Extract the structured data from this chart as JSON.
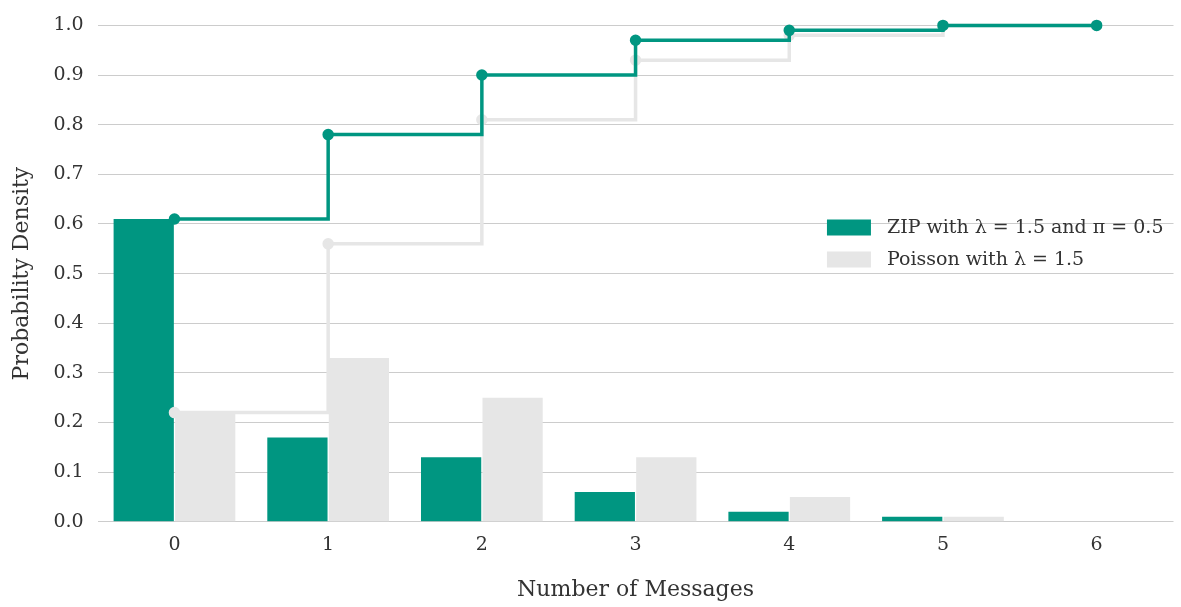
{
  "chart_data": {
    "type": "bar",
    "xlabel": "Number of Messages",
    "ylabel": "Probability Density",
    "categories": [
      "0",
      "1",
      "2",
      "3",
      "4",
      "5",
      "6"
    ],
    "series": [
      {
        "name": "ZIP with λ = 1.5 and π = 0.5",
        "color": "#009681",
        "values": [
          0.61,
          0.17,
          0.13,
          0.06,
          0.02,
          0.01,
          0
        ]
      },
      {
        "name": "Poisson with λ = 1.5",
        "color": "#e6e6e6",
        "values": [
          0.22,
          0.33,
          0.25,
          0.13,
          0.05,
          0.01,
          0
        ]
      },
      {
        "type": "step",
        "color": "#009681",
        "values": [
          0.61,
          0.78,
          0.9,
          0.97,
          0.99,
          1.0,
          1.0
        ]
      },
      {
        "type": "step",
        "color": "#e6e6e6",
        "values": [
          0.22,
          0.56,
          0.81,
          0.93,
          0.98,
          1.0,
          1.0
        ]
      }
    ],
    "ylim": [
      0,
      1.0
    ],
    "yticks": [
      {
        "value": 0,
        "label": "0.0"
      },
      {
        "value": 0.1,
        "label": "0.1"
      },
      {
        "value": 0.2,
        "label": "0.2"
      },
      {
        "value": 0.3,
        "label": "0.3"
      },
      {
        "value": 0.4,
        "label": "0.4"
      },
      {
        "value": 0.5,
        "label": "0.5"
      },
      {
        "value": 0.6,
        "label": "0.6"
      },
      {
        "value": 0.7,
        "label": "0.7"
      },
      {
        "value": 0.8,
        "label": "0.8"
      },
      {
        "value": 0.9,
        "label": "0.9"
      },
      {
        "value": 1.0,
        "label": "1.0"
      }
    ],
    "grid": "y",
    "legend": "right",
    "marker": "circle",
    "line_style": "solid"
  }
}
